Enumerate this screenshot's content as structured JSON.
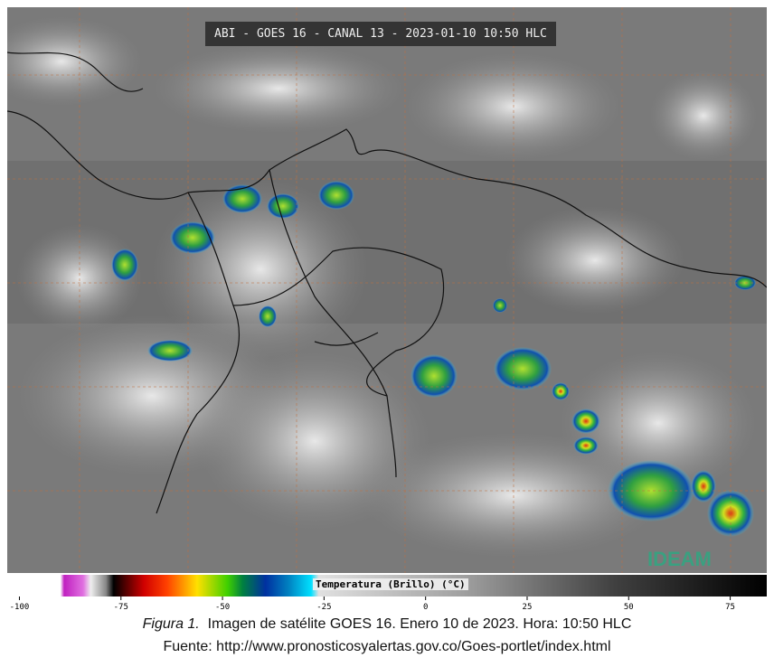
{
  "header": {
    "title": "ABI - GOES 16 - CANAL 13 - 2023-01-10 10:50 HLC"
  },
  "logo": {
    "text": "IDEAM"
  },
  "colorbar": {
    "title": "Temperatura (Brillo) (°C)",
    "range": [
      -103,
      84
    ],
    "ticks": [
      -100,
      -75,
      -50,
      -25,
      0,
      25,
      50,
      75
    ]
  },
  "caption": {
    "figure": "Figura 1.",
    "text": "Imagen de satélite GOES 16. Enero 10 de 2023. Hora: 10:50 HLC",
    "source": "Fuente: http://www.pronosticosyalertas.gov.co/Goes-portlet/index.html"
  }
}
